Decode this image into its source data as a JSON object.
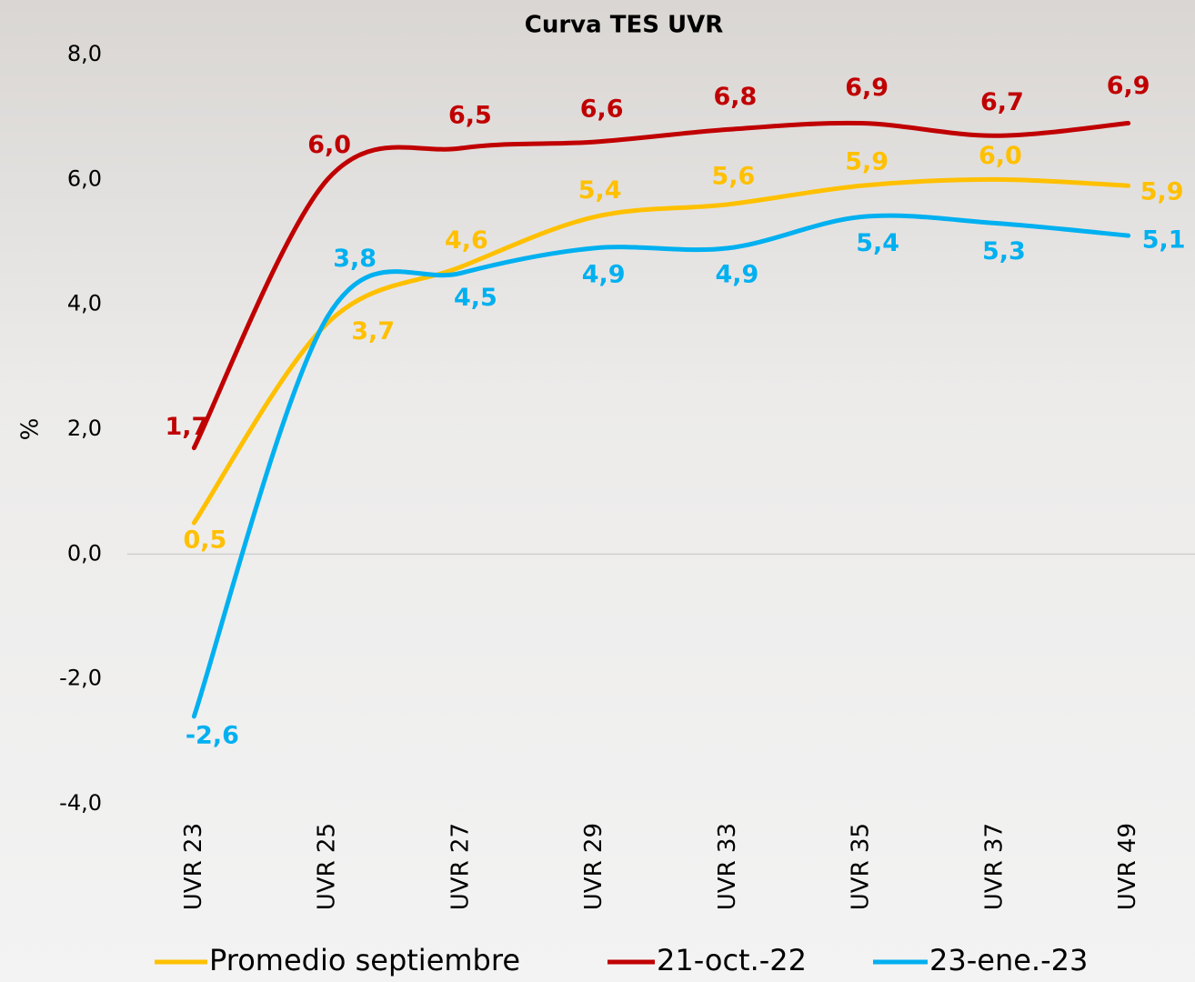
{
  "chart_data": {
    "type": "line",
    "title": "Curva TES UVR",
    "y_label": "%",
    "categories": [
      "UVR 23",
      "UVR 25",
      "UVR 27",
      "UVR 29",
      "UVR 33",
      "UVR 35",
      "UVR 37",
      "UVR 49"
    ],
    "series": [
      {
        "name": "Promedio septiembre",
        "color": "#FFC000",
        "values": [
          0.5,
          3.7,
          4.6,
          5.4,
          5.6,
          5.9,
          6.0,
          5.9
        ],
        "value_labels": [
          "0,5",
          "3,7",
          "4,6",
          "5,4",
          "5,6",
          "5,9",
          "6,0",
          "5,9"
        ]
      },
      {
        "name": "21-oct.-22",
        "color": "#C00000",
        "values": [
          1.7,
          6.0,
          6.5,
          6.6,
          6.8,
          6.9,
          6.7,
          6.9
        ],
        "value_labels": [
          "1,7",
          "6,0",
          "6,5",
          "6,6",
          "6,8",
          "6,9",
          "6,7",
          "6,9"
        ]
      },
      {
        "name": "23-ene.-23",
        "color": "#00B0F0",
        "values": [
          -2.6,
          3.8,
          4.5,
          4.9,
          4.9,
          5.4,
          5.3,
          5.1
        ],
        "value_labels": [
          "-2,6",
          "3,8",
          "4,5",
          "4,9",
          "4,9",
          "5,4",
          "5,3",
          "5,1"
        ]
      }
    ],
    "ylim": [
      -4,
      8
    ],
    "yticks": [
      {
        "value": -4,
        "label": "-4,0"
      },
      {
        "value": -2,
        "label": "-2,0"
      },
      {
        "value": 0,
        "label": "0,0"
      },
      {
        "value": 2,
        "label": "2,0"
      },
      {
        "value": 4,
        "label": "4,0"
      },
      {
        "value": 6,
        "label": "6,0"
      },
      {
        "value": 8,
        "label": "8,0"
      }
    ],
    "grid": false,
    "smooth": true,
    "legend": "bottom"
  }
}
